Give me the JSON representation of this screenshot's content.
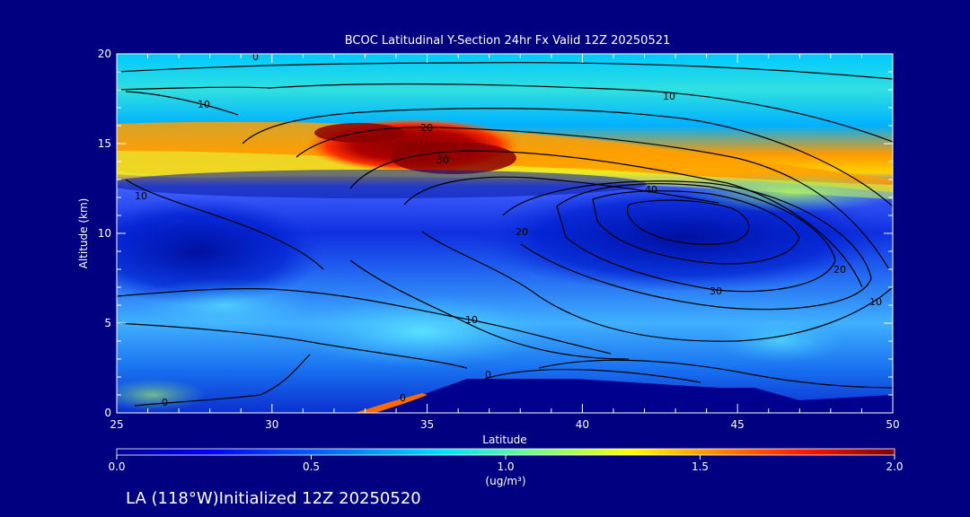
{
  "chart_data": {
    "type": "heatmap",
    "title": "BCOC Latitudinal Y-Section 24hr  Fx Valid 12Z 20250521",
    "xlabel": "Latitude",
    "ylabel": "Altitude (km)",
    "xlim": [
      25,
      50
    ],
    "ylim": [
      0,
      20
    ],
    "x_ticks": [
      "25",
      "30",
      "35",
      "40",
      "45",
      "50"
    ],
    "y_ticks": [
      "0",
      "5",
      "10",
      "15",
      "20"
    ],
    "colorbar": {
      "range": [
        0.0,
        2.0
      ],
      "ticks": [
        "0.0",
        "0.5",
        "1.0",
        "1.5",
        "2.0"
      ],
      "units": "(ug/m³)",
      "colors": [
        "#00008f",
        "#0000ff",
        "#007fff",
        "#00dfff",
        "#7fff7f",
        "#ffff00",
        "#ff7f00",
        "#ff1a00",
        "#7f0000"
      ]
    },
    "field_features": [
      {
        "name": "upper layer band",
        "lat": [
          25,
          42
        ],
        "alt": [
          13.5,
          15.8
        ],
        "value": 1.35
      },
      {
        "name": "maximum core",
        "lat": [
          32,
          38
        ],
        "alt": [
          13.8,
          15.8
        ],
        "value": 2.0
      },
      {
        "name": "lower plume",
        "lat": [
          25,
          50
        ],
        "alt": [
          3,
          7
        ],
        "value": 0.75
      },
      {
        "name": "surface maximum",
        "lat": [
          33,
          35
        ],
        "alt": [
          0,
          0.6
        ],
        "value": 1.6
      }
    ],
    "contour_labels": [
      "0",
      "10",
      "10",
      "20",
      "30",
      "40",
      "10",
      "20",
      "30",
      "20",
      "10",
      "0",
      "0",
      "0"
    ],
    "footer": "LA (118°W)Initialized 12Z 20250520"
  },
  "colors": {
    "background": "#000080",
    "text": "#ffffff",
    "contour": "#000000",
    "terrain": "#00008f"
  }
}
